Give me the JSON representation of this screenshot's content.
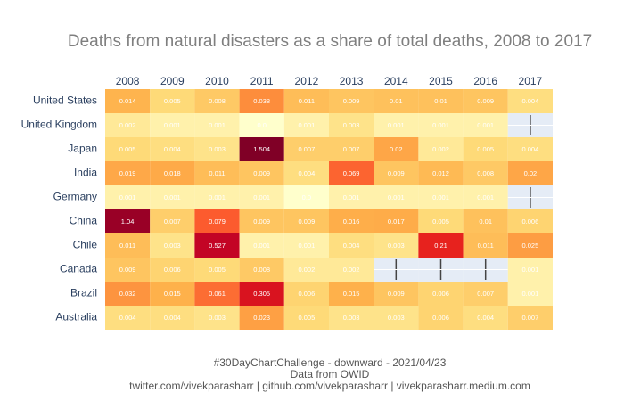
{
  "chart_data": {
    "type": "heatmap",
    "title": "Deaths from natural disasters as a share of total deaths, 2008 to 2017",
    "annotations": [
      "#30DayChartChallenge - downward - 2021/04/23",
      "Data from OWID",
      "twitter.com/vivekparasharr | github.com/vivekparasharr | vivekparasharr.medium.com"
    ],
    "x": [
      "2008",
      "2009",
      "2010",
      "2011",
      "2012",
      "2013",
      "2014",
      "2015",
      "2016",
      "2017"
    ],
    "y": [
      "United States",
      "United Kingdom",
      "Japan",
      "India",
      "Germany",
      "China",
      "Chile",
      "Canada",
      "Brazil",
      "Australia"
    ],
    "z": [
      [
        0.014,
        0.005,
        0.008,
        0.038,
        0.011,
        0.009,
        0.01,
        0.01,
        0.009,
        0.004
      ],
      [
        0.002,
        0.001,
        0.001,
        0,
        0.001,
        0.003,
        0.001,
        0.001,
        0.001,
        null
      ],
      [
        0.005,
        0.004,
        0.003,
        1.504,
        0.007,
        0.007,
        0.02,
        0.002,
        0.005,
        0.004
      ],
      [
        0.019,
        0.018,
        0.011,
        0.009,
        0.004,
        0.069,
        0.009,
        0.012,
        0.008,
        0.02
      ],
      [
        0.001,
        0.001,
        0.001,
        0.001,
        0,
        0.001,
        0.001,
        0.001,
        0.001,
        null
      ],
      [
        1.04,
        0.007,
        0.079,
        0.009,
        0.009,
        0.016,
        0.017,
        0.005,
        0.01,
        0.006
      ],
      [
        0.011,
        0.003,
        0.527,
        0.001,
        0.001,
        0.004,
        0.003,
        0.21,
        0.011,
        0.025
      ],
      [
        0.009,
        0.006,
        0.005,
        0.008,
        0.002,
        0.002,
        null,
        null,
        null,
        0.001
      ],
      [
        0.032,
        0.015,
        0.061,
        0.305,
        0.006,
        0.015,
        0.009,
        0.006,
        0.007,
        0.001
      ],
      [
        0.004,
        0.004,
        0.003,
        0.023,
        0.005,
        0.003,
        0.003,
        0.006,
        0.004,
        0.007
      ]
    ],
    "value_labels": [
      [
        "0.014",
        "0.005",
        "0.008",
        "0.038",
        "0.011",
        "0.009",
        "0.01",
        "0.01",
        "0.009",
        "0.004"
      ],
      [
        "0.002",
        "0.001",
        "0.001",
        "0.0",
        "0.001",
        "0.003",
        "0.001",
        "0.001",
        "0.001",
        null
      ],
      [
        "0.005",
        "0.004",
        "0.003",
        "1.504",
        "0.007",
        "0.007",
        "0.02",
        "0.002",
        "0.005",
        "0.004"
      ],
      [
        "0.019",
        "0.018",
        "0.011",
        "0.009",
        "0.004",
        "0.069",
        "0.009",
        "0.012",
        "0.008",
        "0.02"
      ],
      [
        "0.001",
        "0.001",
        "0.001",
        "0.001",
        "0.0",
        "0.001",
        "0.001",
        "0.001",
        "0.001",
        null
      ],
      [
        "1.04",
        "0.007",
        "0.079",
        "0.009",
        "0.009",
        "0.016",
        "0.017",
        "0.005",
        "0.01",
        "0.006"
      ],
      [
        "0.011",
        "0.003",
        "0.527",
        "0.001",
        "0.001",
        "0.004",
        "0.003",
        "0.21",
        "0.011",
        "0.025"
      ],
      [
        "0.009",
        "0.006",
        "0.005",
        "0.008",
        "0.002",
        "0.002",
        null,
        null,
        null,
        "0.001"
      ],
      [
        "0.032",
        "0.015",
        "0.061",
        "0.305",
        "0.006",
        "0.015",
        "0.009",
        "0.006",
        "0.007",
        "0.001"
      ],
      [
        "0.004",
        "0.004",
        "0.003",
        "0.023",
        "0.005",
        "0.003",
        "0.003",
        "0.006",
        "0.004",
        "0.007"
      ]
    ],
    "colorscale": [
      "#ffffcc",
      "#ffeda0",
      "#fed976",
      "#feb24c",
      "#fd8d3c",
      "#fc4e2a",
      "#e31a1c",
      "#bd0026",
      "#800026"
    ],
    "missing_color": "#e5ecf6"
  }
}
